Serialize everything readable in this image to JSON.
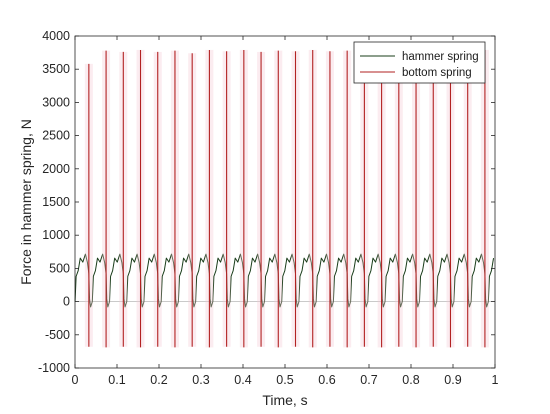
{
  "chart_data": {
    "type": "line",
    "xlabel": "Time, s",
    "ylabel": "Force in hammer spring, N",
    "xlim": [
      0,
      1
    ],
    "ylim": [
      -1000,
      4000
    ],
    "x_ticks": [
      "0",
      "0.1",
      "0.2",
      "0.3",
      "0.4",
      "0.5",
      "0.6",
      "0.7",
      "0.8",
      "0.9",
      "1"
    ],
    "y_ticks": [
      "-1000",
      "-500",
      "0",
      "500",
      "1000",
      "1500",
      "2000",
      "2500",
      "3000",
      "3500",
      "4000"
    ],
    "legend_position": "top-right",
    "period_s": 0.041,
    "impact_times_s": [
      0.033,
      0.074,
      0.115,
      0.156,
      0.197,
      0.238,
      0.279,
      0.32,
      0.361,
      0.402,
      0.443,
      0.484,
      0.525,
      0.566,
      0.607,
      0.648,
      0.689,
      0.73,
      0.771,
      0.812,
      0.853,
      0.894,
      0.935,
      0.976
    ],
    "series": [
      {
        "name": "hammer spring",
        "color": "#1a3d1a",
        "pattern": "periodic",
        "cycle_shape": {
          "phase": [
            0,
            0.06,
            0.18,
            0.3,
            0.45,
            0.6,
            0.72,
            0.8,
            0.84,
            0.9,
            1.0
          ],
          "force_N": [
            0,
            380,
            520,
            620,
            650,
            680,
            640,
            420,
            40,
            -80,
            0
          ]
        }
      },
      {
        "name": "bottom spring",
        "color": "#b22222",
        "pattern": "impulses",
        "impulse_peaks_N": [
          3580,
          3780,
          3760,
          3790,
          3760,
          3780,
          3740,
          3790,
          3770,
          3790,
          3760,
          3780,
          3770,
          3790,
          3770,
          3780,
          3740,
          3780,
          3790,
          3770,
          3770,
          3790,
          3780,
          3790
        ],
        "impulse_troughs_N": [
          -680,
          -690,
          -680,
          -690,
          -680,
          -690,
          -680,
          -690,
          -680,
          -690,
          -680,
          -690,
          -680,
          -690,
          -680,
          -690,
          -680,
          -690,
          -680,
          -690,
          -680,
          -690,
          -680,
          -690
        ]
      }
    ]
  }
}
